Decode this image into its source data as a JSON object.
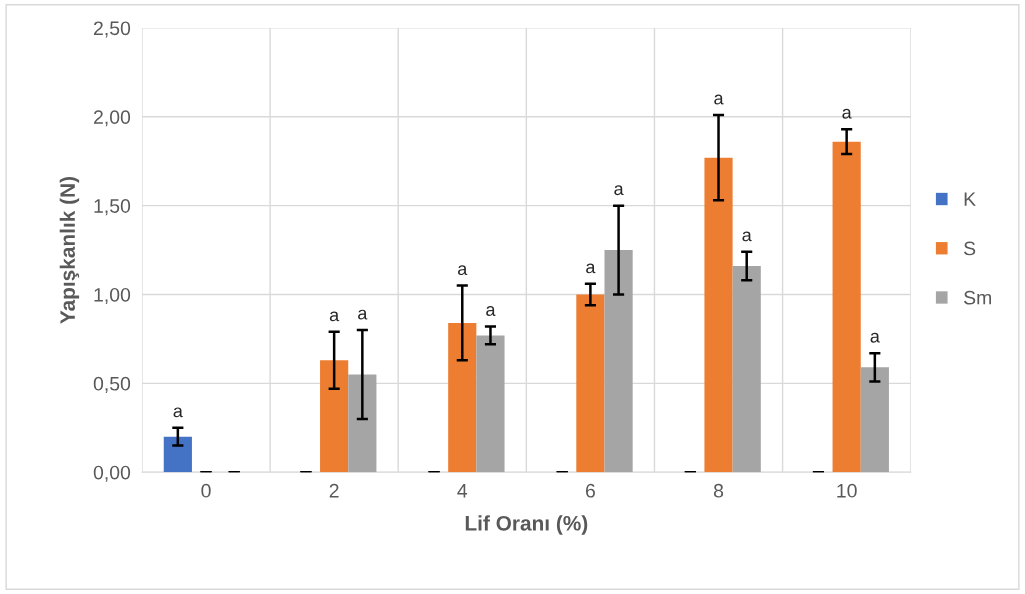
{
  "chart_data": {
    "type": "bar",
    "xlabel": "Lif Oranı (%)",
    "ylabel": "Yapışkanlık (N)",
    "categories": [
      "0",
      "2",
      "4",
      "6",
      "8",
      "10"
    ],
    "series": [
      {
        "name": "K",
        "color": "#4472c4",
        "values": [
          0.2,
          0,
          0,
          0,
          0,
          0
        ],
        "errors": [
          0.05,
          0,
          0,
          0,
          0,
          0
        ],
        "value_labels": [
          "a",
          null,
          null,
          null,
          null,
          null
        ]
      },
      {
        "name": "S",
        "color": "#ed7d31",
        "values": [
          0,
          0.63,
          0.84,
          1.0,
          1.77,
          1.86
        ],
        "errors": [
          0,
          0.16,
          0.21,
          0.06,
          0.24,
          0.07
        ],
        "value_labels": [
          null,
          "a",
          "a",
          "a",
          "a",
          "a"
        ]
      },
      {
        "name": "Sm",
        "color": "#a5a5a5",
        "values": [
          0,
          0.55,
          0.77,
          1.25,
          1.16,
          0.59
        ],
        "errors": [
          0,
          0.25,
          0.05,
          0.25,
          0.08,
          0.08
        ],
        "value_labels": [
          null,
          "a",
          "a",
          "a",
          "a",
          "a"
        ]
      }
    ],
    "ylim": [
      0,
      2.5
    ],
    "yticks": [
      {
        "value": 0,
        "label": "0,00"
      },
      {
        "value": 0.5,
        "label": "0,50"
      },
      {
        "value": 1.0,
        "label": "1,00"
      },
      {
        "value": 1.5,
        "label": "1,50"
      },
      {
        "value": 2.0,
        "label": "2,00"
      },
      {
        "value": 2.5,
        "label": "2,50"
      }
    ],
    "grid": true,
    "legend": "right"
  }
}
